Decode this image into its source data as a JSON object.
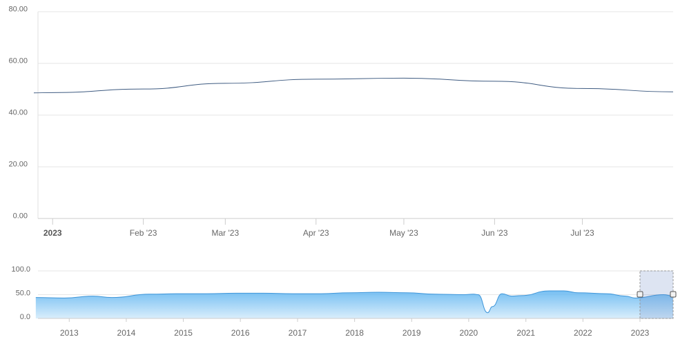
{
  "chart_data": [
    {
      "type": "line",
      "title": "",
      "xlabel": "",
      "ylabel": "",
      "ylim": [
        0,
        80
      ],
      "y_ticks": [
        "0.00",
        "20.00",
        "40.00",
        "60.00",
        "80.00"
      ],
      "x_tick_labels": [
        "2023",
        "Feb '23",
        "Mar '23",
        "Apr '23",
        "May '23",
        "Jun '23",
        "Jul '23"
      ],
      "grid": true,
      "series": [
        {
          "color": "#3d5a80",
          "x": [
            "2023-01-01",
            "2023-02-01",
            "2023-03-01",
            "2023-04-01",
            "2023-05-01",
            "2023-06-01",
            "2023-07-01",
            "2023-08-01"
          ],
          "values": [
            48.7,
            50.1,
            52.3,
            53.9,
            54.3,
            53.1,
            50.3,
            49.0
          ]
        }
      ]
    },
    {
      "type": "area",
      "role": "navigator",
      "ylim": [
        0,
        100
      ],
      "y_ticks": [
        "0.0",
        "50.0",
        "100.0"
      ],
      "x_tick_labels": [
        "2013",
        "2014",
        "2015",
        "2016",
        "2017",
        "2018",
        "2019",
        "2020",
        "2021",
        "2022",
        "2023"
      ],
      "selected_range": [
        "2023-01",
        "2023-08"
      ],
      "series": [
        {
          "color": "#3d95d9",
          "x": [
            "2012-06",
            "2012-12",
            "2013-06",
            "2013-10",
            "2014-06",
            "2014-12",
            "2015-06",
            "2015-12",
            "2016-06",
            "2016-12",
            "2017-06",
            "2017-12",
            "2018-06",
            "2018-12",
            "2019-06",
            "2019-12",
            "2020-02",
            "2020-03",
            "2020-05",
            "2020-06",
            "2020-08",
            "2020-10",
            "2020-12",
            "2021-06",
            "2021-09",
            "2021-12",
            "2022-06",
            "2022-10",
            "2022-12",
            "2023-06",
            "2023-08"
          ],
          "values": [
            44,
            43,
            47,
            44,
            51,
            52,
            52,
            53,
            53,
            52,
            52,
            54,
            55,
            54,
            51,
            50,
            51,
            50,
            12,
            25,
            52,
            47,
            48,
            58,
            58,
            54,
            52,
            47,
            43,
            50,
            47
          ]
        }
      ]
    }
  ]
}
